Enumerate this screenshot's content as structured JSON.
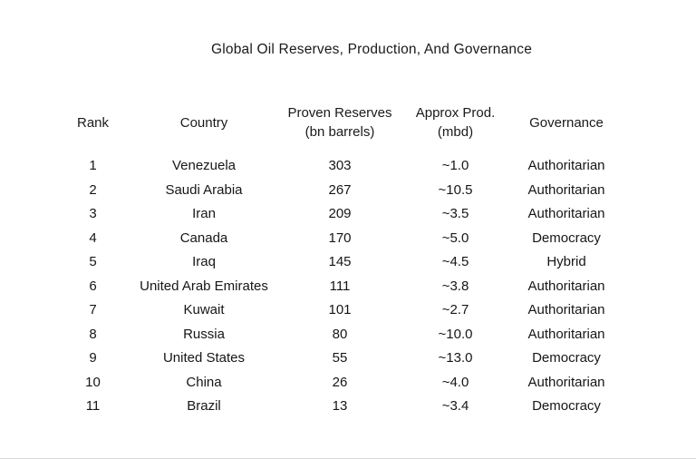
{
  "title": "Global Oil Reserves, Production, And Governance",
  "chart_data": {
    "type": "table",
    "title": "Global Oil Reserves, Production, And Governance",
    "columns": [
      {
        "key": "rank",
        "label": "Rank",
        "sub": ""
      },
      {
        "key": "country",
        "label": "Country",
        "sub": ""
      },
      {
        "key": "reserves",
        "label": "Proven Reserves",
        "sub": "(bn barrels)"
      },
      {
        "key": "production",
        "label": "Approx Prod.",
        "sub": "(mbd)"
      },
      {
        "key": "governance",
        "label": "Governance",
        "sub": ""
      }
    ],
    "rows": [
      [
        "1",
        "Venezuela",
        "303",
        "~1.0",
        "Authoritarian"
      ],
      [
        "2",
        "Saudi Arabia",
        "267",
        "~10.5",
        "Authoritarian"
      ],
      [
        "3",
        "Iran",
        "209",
        "~3.5",
        "Authoritarian"
      ],
      [
        "4",
        "Canada",
        "170",
        "~5.0",
        "Democracy"
      ],
      [
        "5",
        "Iraq",
        "145",
        "~4.5",
        "Hybrid"
      ],
      [
        "6",
        "United Arab Emirates",
        "111",
        "~3.8",
        "Authoritarian"
      ],
      [
        "7",
        "Kuwait",
        "101",
        "~2.7",
        "Authoritarian"
      ],
      [
        "8",
        "Russia",
        "80",
        "~10.0",
        "Authoritarian"
      ],
      [
        "9",
        "United States",
        "55",
        "~13.0",
        "Democracy"
      ],
      [
        "10",
        "China",
        "26",
        "~4.0",
        "Authoritarian"
      ],
      [
        "11",
        "Brazil",
        "13",
        "~3.4",
        "Democracy"
      ]
    ],
    "units": {
      "reserves": "bn barrels",
      "production": "mbd"
    },
    "governance_values": [
      "Authoritarian",
      "Democracy",
      "Hybrid"
    ]
  }
}
